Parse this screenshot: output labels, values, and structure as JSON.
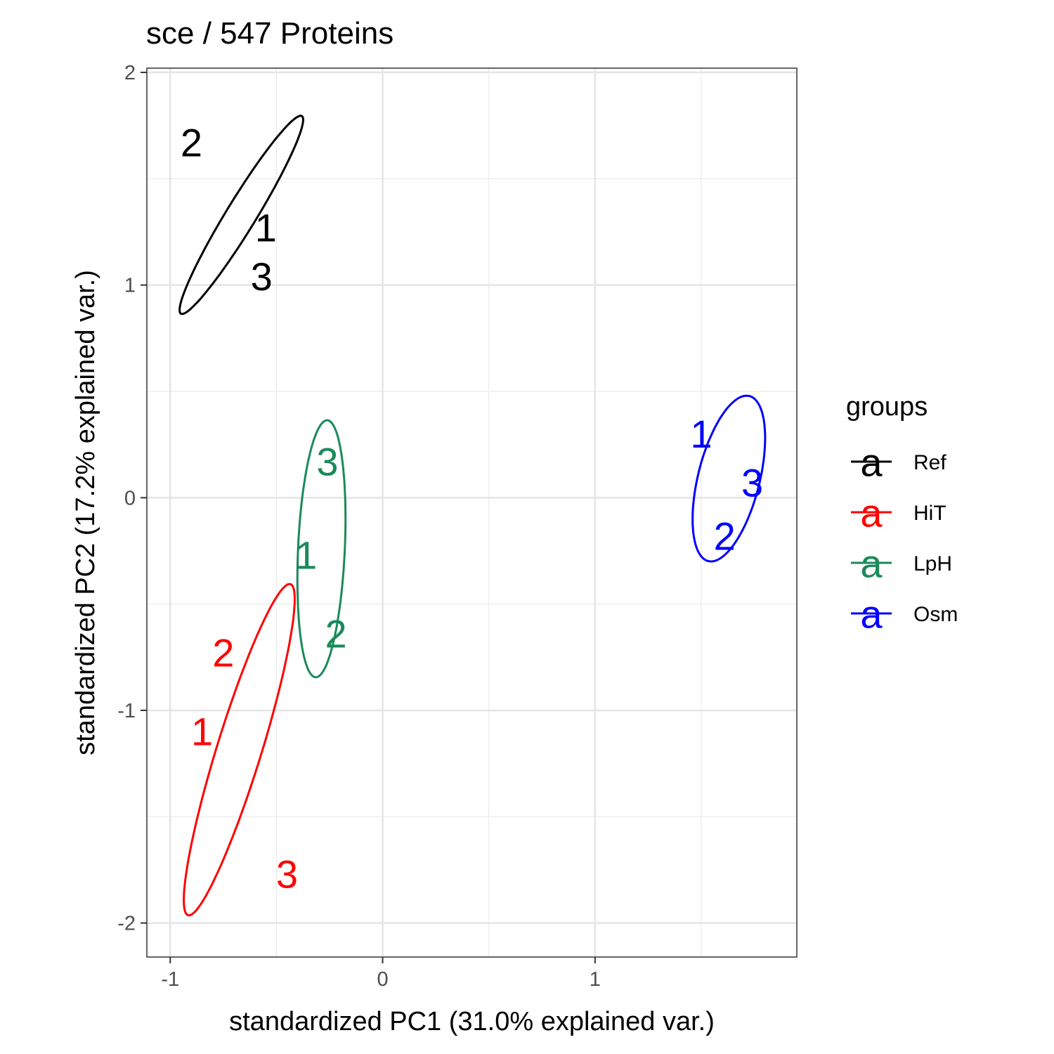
{
  "chart_data": {
    "type": "scatter",
    "title": "sce /  547  Proteins",
    "xlabel": "standardized PC1 (31.0% explained var.)",
    "ylabel": "standardized PC2 (17.2% explained var.)",
    "xlim": [
      -1.11,
      1.95
    ],
    "ylim": [
      -2.16,
      2.02
    ],
    "x_ticks": [
      -1,
      0,
      1
    ],
    "x_tick_labels": [
      "-1",
      "0",
      "1"
    ],
    "y_ticks": [
      -2,
      -1,
      0,
      1,
      2
    ],
    "y_tick_labels": [
      "-2",
      "-1",
      "0",
      "1",
      "2"
    ],
    "grid": true,
    "legend": {
      "title": "groups",
      "position": "right",
      "key_glyph": "a"
    },
    "series": [
      {
        "name": "Ref",
        "color": "#000000",
        "points": [
          {
            "label": "1",
            "x": -0.55,
            "y": 1.27
          },
          {
            "label": "2",
            "x": -0.9,
            "y": 1.67
          },
          {
            "label": "3",
            "x": -0.57,
            "y": 1.04
          }
        ],
        "ellipse": {
          "cx": -0.665,
          "cy": 1.33,
          "rx": 0.545,
          "ry": 0.07,
          "angle_deg": 58.5
        }
      },
      {
        "name": "HiT",
        "color": "#ff0000",
        "points": [
          {
            "label": "1",
            "x": -0.85,
            "y": -1.1
          },
          {
            "label": "2",
            "x": -0.75,
            "y": -0.73
          },
          {
            "label": "3",
            "x": -0.45,
            "y": -1.77
          }
        ],
        "ellipse": {
          "cx": -0.675,
          "cy": -1.185,
          "rx": 0.815,
          "ry": 0.105,
          "angle_deg": 72.8
        }
      },
      {
        "name": "LpH",
        "color": "#1a8a5a",
        "points": [
          {
            "label": "1",
            "x": -0.36,
            "y": -0.27
          },
          {
            "label": "2",
            "x": -0.22,
            "y": -0.64
          },
          {
            "label": "3",
            "x": -0.26,
            "y": 0.17
          }
        ],
        "ellipse": {
          "cx": -0.288,
          "cy": -0.24,
          "rx": 0.605,
          "ry": 0.11,
          "angle_deg": 87.4
        }
      },
      {
        "name": "Osm",
        "color": "#0000ff",
        "points": [
          {
            "label": "1",
            "x": 1.5,
            "y": 0.3
          },
          {
            "label": "2",
            "x": 1.61,
            "y": -0.18
          },
          {
            "label": "3",
            "x": 1.74,
            "y": 0.07
          }
        ],
        "ellipse": {
          "cx": 1.63,
          "cy": 0.09,
          "rx": 0.4,
          "ry": 0.145,
          "angle_deg": 76.0
        }
      }
    ]
  }
}
